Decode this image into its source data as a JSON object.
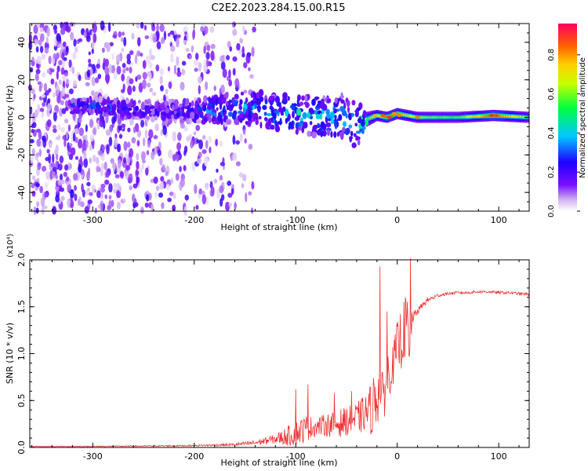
{
  "title": "C2E2.2023.284.15.00.R15",
  "chart_data": [
    {
      "type": "heatmap",
      "xlabel": "Height of straight line (km)",
      "ylabel": "Frequency (Hz)",
      "xlim": [
        -362,
        130
      ],
      "ylim": [
        -50,
        50
      ],
      "xticks": [
        -300,
        -200,
        -100,
        0,
        100
      ],
      "yticks": [
        -40,
        -20,
        0,
        20,
        40
      ],
      "colorbar": {
        "label": "Normalized spectral amplitude",
        "range": [
          0,
          0.96
        ],
        "ticks": [
          0.0,
          0.2,
          0.4,
          0.6,
          0.8
        ],
        "colors": [
          "#ffffff",
          "#d2b4f0",
          "#7a10ff",
          "#1f00ff",
          "#00c8ff",
          "#00ff40",
          "#c8ff00",
          "#ffd000",
          "#ff6000",
          "#ff0060"
        ]
      },
      "noise_region": {
        "x_from": -362,
        "x_to": -140,
        "freq_from": -50,
        "freq_to": 50,
        "typical_amplitude": 0.05
      },
      "ridge": [
        {
          "x": -300,
          "freq": 6,
          "halfwidth": 4,
          "amp": 0.25
        },
        {
          "x": -230,
          "freq": 3,
          "halfwidth": 5,
          "amp": 0.2
        },
        {
          "x": -180,
          "freq": 4,
          "halfwidth": 7,
          "amp": 0.3
        },
        {
          "x": -140,
          "freq": 6,
          "halfwidth": 9,
          "amp": 0.3
        },
        {
          "x": -125,
          "freq": 3,
          "halfwidth": 9,
          "amp": 0.32
        },
        {
          "x": -100,
          "freq": 2,
          "halfwidth": 10,
          "amp": 0.35
        },
        {
          "x": -75,
          "freq": 0,
          "halfwidth": 10,
          "amp": 0.38
        },
        {
          "x": -55,
          "freq": 1,
          "halfwidth": 11,
          "amp": 0.35
        },
        {
          "x": -40,
          "freq": -4,
          "halfwidth": 12,
          "amp": 0.3
        },
        {
          "x": -30,
          "freq": -1,
          "halfwidth": 4,
          "amp": 0.55
        },
        {
          "x": -20,
          "freq": 1,
          "halfwidth": 3,
          "amp": 0.7
        },
        {
          "x": -10,
          "freq": 0,
          "halfwidth": 3,
          "amp": 0.85
        },
        {
          "x": 0,
          "freq": 2,
          "halfwidth": 3,
          "amp": 0.82
        },
        {
          "x": 20,
          "freq": 0,
          "halfwidth": 3,
          "amp": 0.6
        },
        {
          "x": 60,
          "freq": 0,
          "halfwidth": 3,
          "amp": 0.55
        },
        {
          "x": 95,
          "freq": 1,
          "halfwidth": 3,
          "amp": 0.88
        },
        {
          "x": 130,
          "freq": 0,
          "halfwidth": 3,
          "amp": 0.55
        }
      ]
    },
    {
      "type": "line",
      "xlabel": "Height of straight line (km)",
      "ylabel": "SNR (10 * v/v)",
      "y_scale_label": "(x10⁴)",
      "xlim": [
        -362,
        130
      ],
      "ylim": [
        0,
        2.0
      ],
      "xticks": [
        -300,
        -200,
        -100,
        0,
        100
      ],
      "yticks": [
        0.0,
        0.5,
        1.0,
        1.5,
        2.0
      ],
      "series": [
        {
          "color": "#ee3333",
          "x": [
            -362,
            -300,
            -250,
            -200,
            -160,
            -140,
            -120,
            -105,
            -90,
            -80,
            -70,
            -60,
            -50,
            -40,
            -30,
            -25,
            -20,
            -15,
            -10,
            -5,
            0,
            5,
            10,
            12,
            14,
            16,
            20,
            25,
            30,
            40,
            50,
            60,
            70,
            80,
            90,
            100,
            110,
            120,
            130
          ],
          "y": [
            0.01,
            0.012,
            0.015,
            0.02,
            0.03,
            0.05,
            0.09,
            0.13,
            0.2,
            0.22,
            0.24,
            0.25,
            0.28,
            0.3,
            0.38,
            0.42,
            0.6,
            0.5,
            0.75,
            0.85,
            1.05,
            1.2,
            1.3,
            0.9,
            1.35,
            1.4,
            1.45,
            1.52,
            1.57,
            1.62,
            1.64,
            1.65,
            1.65,
            1.66,
            1.66,
            1.65,
            1.65,
            1.64,
            1.63
          ],
          "noise": [
            0.004,
            0.005,
            0.006,
            0.008,
            0.015,
            0.03,
            0.05,
            0.12,
            0.15,
            0.1,
            0.12,
            0.15,
            0.15,
            0.18,
            0.2,
            0.3,
            0.35,
            0.3,
            0.3,
            0.2,
            0.3,
            0.35,
            0.3,
            0.3,
            0.25,
            0.05,
            0.04,
            0.03,
            0.03,
            0.02,
            0.015,
            0.015,
            0.015,
            0.015,
            0.015,
            0.015,
            0.015,
            0.015,
            0.015
          ],
          "spikes": [
            {
              "x": -100,
              "y": 0.62
            },
            {
              "x": -88,
              "y": 0.67
            },
            {
              "x": -62,
              "y": 0.58
            },
            {
              "x": -45,
              "y": 0.6
            },
            {
              "x": -17,
              "y": 1.93
            },
            {
              "x": -10,
              "y": 1.45
            },
            {
              "x": 8,
              "y": 1.6
            },
            {
              "x": 13,
              "y": 2.02
            }
          ]
        }
      ]
    }
  ]
}
